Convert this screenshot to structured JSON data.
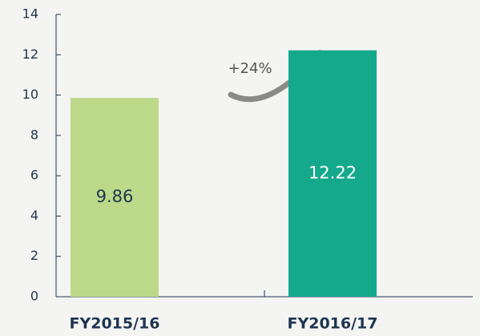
{
  "chart_data": {
    "type": "bar",
    "categories": [
      "FY2015/16",
      "FY2016/17"
    ],
    "values": [
      9.86,
      12.22
    ],
    "colors": [
      "#bcd98a",
      "#15a98c"
    ],
    "ylim": [
      0,
      14
    ],
    "yticks": [
      0,
      2,
      4,
      6,
      8,
      10,
      12,
      14
    ],
    "annotation": "+24%"
  }
}
